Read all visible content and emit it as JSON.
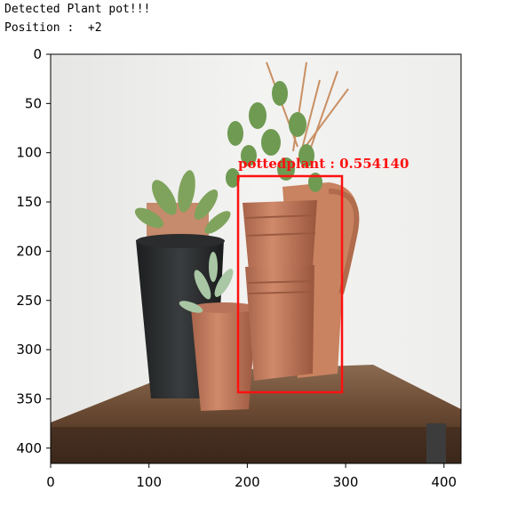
{
  "output": {
    "line1": "Detected Plant pot!!!",
    "line2": "Position :  +2"
  },
  "figure": {
    "x_ticks": [
      {
        "value": 0,
        "label": "0"
      },
      {
        "value": 100,
        "label": "100"
      },
      {
        "value": 200,
        "label": "200"
      },
      {
        "value": 300,
        "label": "300"
      },
      {
        "value": 400,
        "label": "400"
      }
    ],
    "y_ticks": [
      {
        "value": 0,
        "label": "0"
      },
      {
        "value": 50,
        "label": "50"
      },
      {
        "value": 100,
        "label": "100"
      },
      {
        "value": 150,
        "label": "150"
      },
      {
        "value": 200,
        "label": "200"
      },
      {
        "value": 250,
        "label": "250"
      },
      {
        "value": 300,
        "label": "300"
      },
      {
        "value": 350,
        "label": "350"
      },
      {
        "value": 400,
        "label": "400"
      }
    ],
    "detection": {
      "label": "pottedplant : 0.554140",
      "box_color": "#ff1010"
    }
  }
}
